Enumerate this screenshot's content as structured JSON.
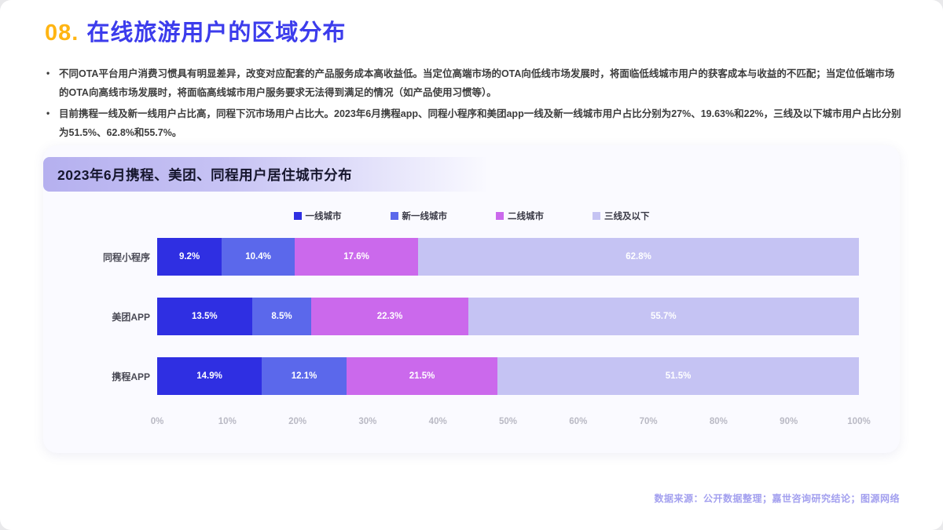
{
  "page": {
    "title_number": "08.",
    "title_text": "在线旅游用户的区域分布",
    "bullets": [
      "不同OTA平台用户消费习惯具有明显差异，改变对应配套的产品服务成本高收益低。当定位高端市场的OTA向低线市场发展时，将面临低线城市用户的获客成本与收益的不匹配；当定位低端市场的OTA向高线市场发展时，将面临高线城市用户服务要求无法得到满足的情况（如产品使用习惯等）。",
      "目前携程一线及新一线用户占比高，同程下沉市场用户占比大。2023年6月携程app、同程小程序和美团app一线及新一线城市用户占比分别为27%、19.63%和22%，三线及以下城市用户占比分别为51.5%、62.8%和55.7%。"
    ],
    "source_note": "数据来源：公开数据整理；嘉世咨询研究结论；图源网络"
  },
  "colors": {
    "title_number": "#ffb513",
    "title_text": "#3c3cec",
    "footer": "#a3a0ef"
  },
  "chart_data": {
    "type": "bar",
    "stacked": true,
    "orientation": "horizontal",
    "title": "2023年6月携程、美团、同程用户居住城市分布",
    "categories": [
      "同程小程序",
      "美团APP",
      "携程APP"
    ],
    "series": [
      {
        "name": "一线城市",
        "color": "#2f2fe2",
        "values": [
          9.2,
          13.5,
          14.9
        ]
      },
      {
        "name": "新一线城市",
        "color": "#5b68eb",
        "values": [
          10.4,
          8.5,
          12.1
        ]
      },
      {
        "name": "二线城市",
        "color": "#cb69ec",
        "values": [
          17.6,
          22.3,
          21.5
        ]
      },
      {
        "name": "三线及以下",
        "color": "#c5c3f3",
        "values": [
          62.8,
          55.7,
          51.5
        ]
      }
    ],
    "x_ticks": [
      "0%",
      "10%",
      "20%",
      "30%",
      "40%",
      "50%",
      "60%",
      "70%",
      "80%",
      "90%",
      "100%"
    ],
    "xlim": [
      0,
      100
    ],
    "value_suffix": "%",
    "legend_position": "top",
    "grid": false
  }
}
